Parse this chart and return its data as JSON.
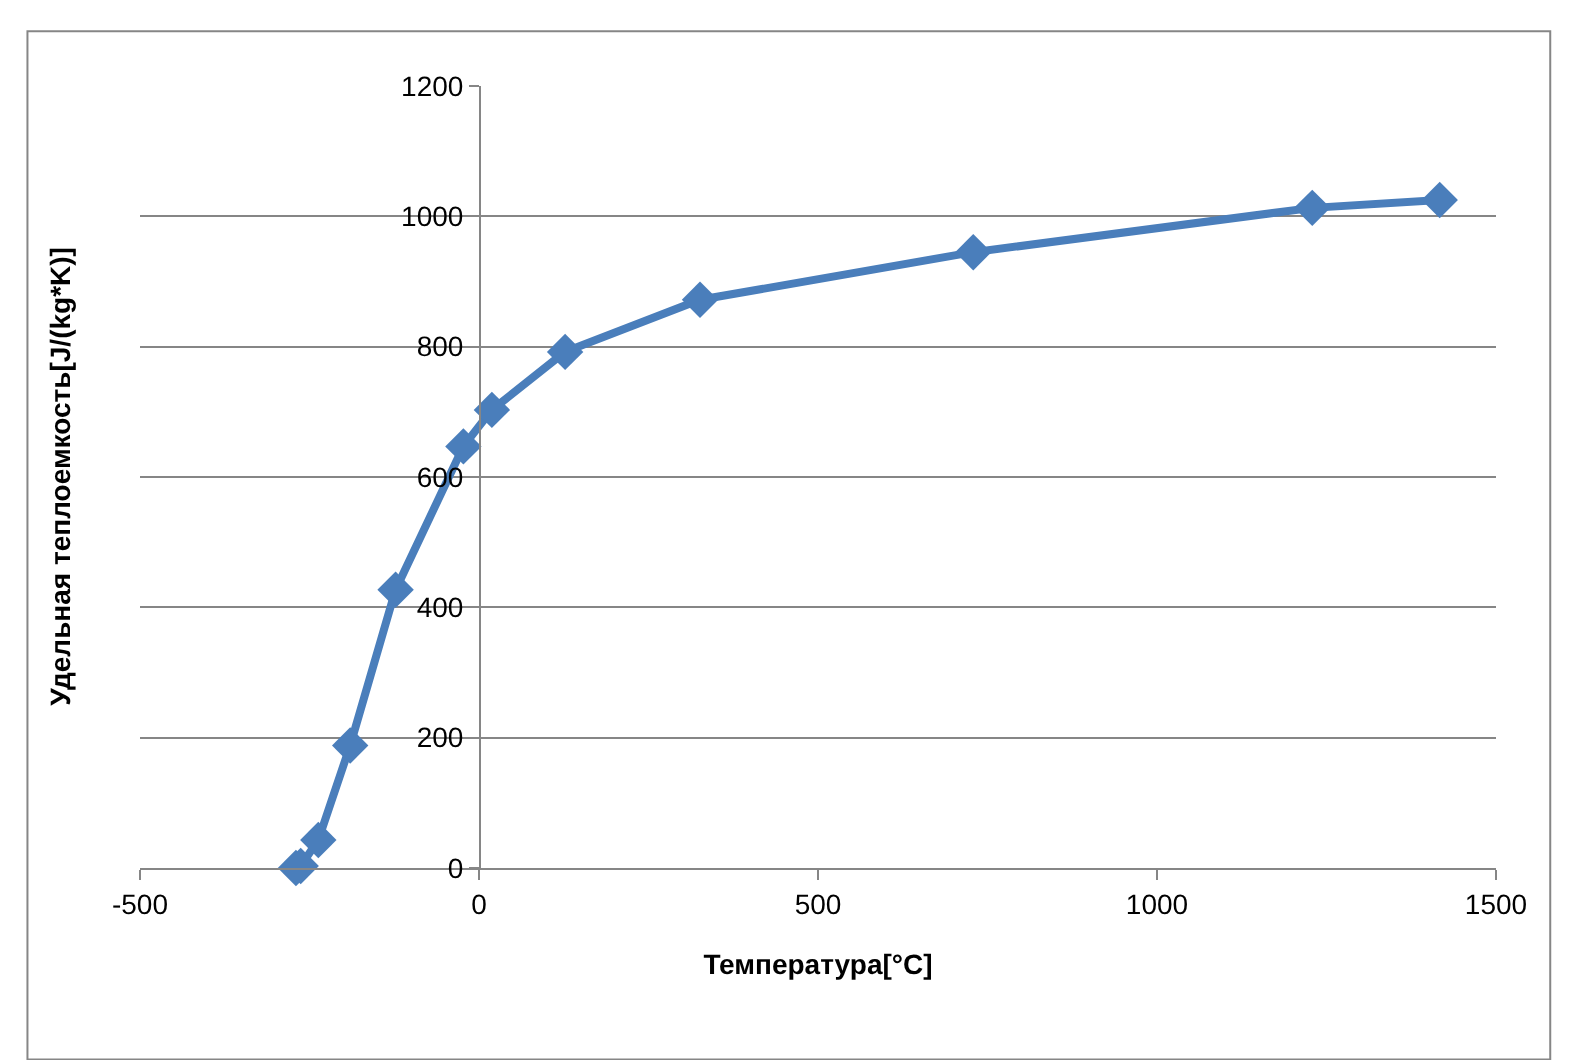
{
  "chart_data": {
    "type": "line",
    "xlabel": "Температура[°C]",
    "ylabel": "Удельная теплоемкость[J/(kg*K)]",
    "x": [
      -270,
      -263,
      -237,
      -190,
      -123,
      -23,
      19,
      127,
      326,
      729,
      1229,
      1417
    ],
    "series": [
      {
        "color": "#4a7ebb",
        "values": [
          0,
          3,
          43,
          188,
          427,
          647,
          703,
          792,
          872,
          945,
          1013,
          1025
        ]
      }
    ],
    "xlim": [
      -500,
      1500
    ],
    "xticks": [
      -500,
      0,
      500,
      1000,
      1500
    ],
    "ylim": [
      0,
      1200
    ],
    "yticks": [
      0,
      200,
      400,
      600,
      800,
      1000,
      1200
    ],
    "grid": "y",
    "marker": "diamond",
    "line_style": "solid"
  }
}
